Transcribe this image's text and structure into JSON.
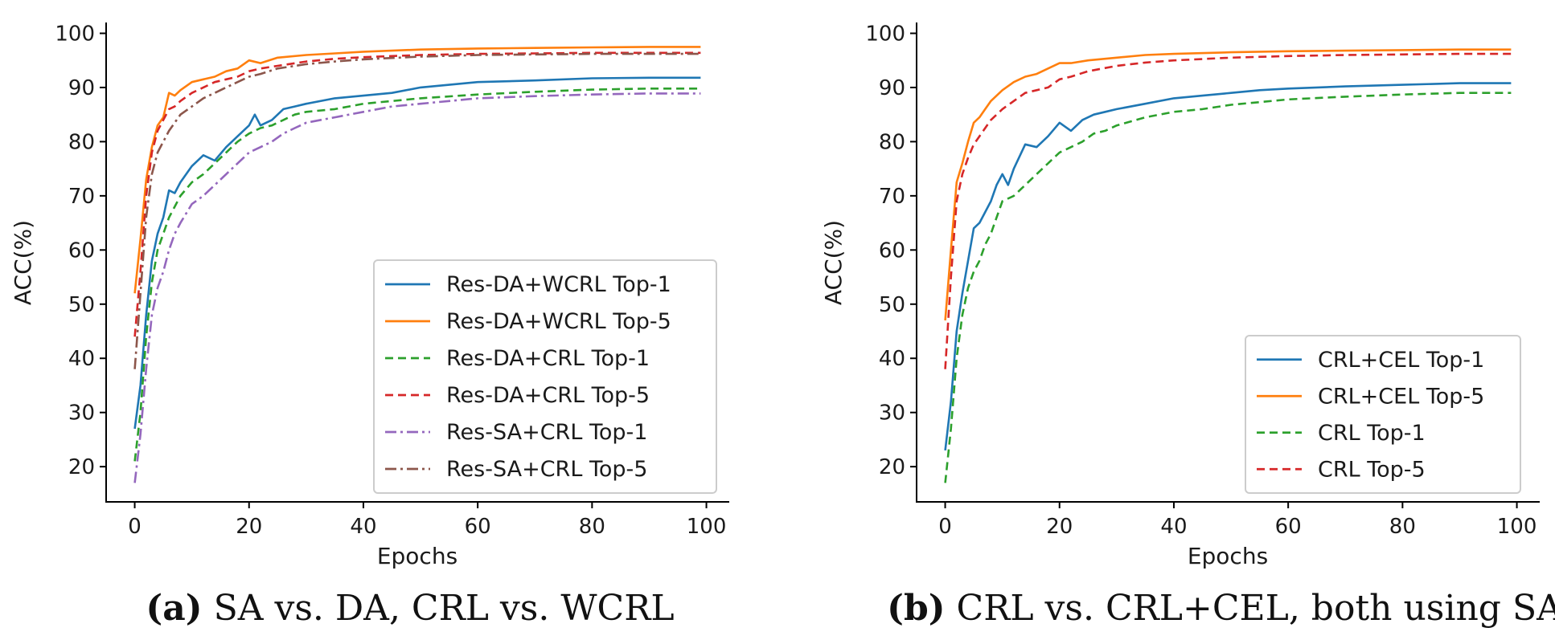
{
  "colors": {
    "blue": "#1f77b4",
    "orange": "#ff7f0e",
    "green": "#2ca02c",
    "red": "#d62728",
    "purple": "#9467bd",
    "brown": "#8c564b"
  },
  "chart_data": [
    {
      "type": "line",
      "title": "",
      "xlabel": "Epochs",
      "ylabel": "ACC(%)",
      "xlim": [
        -5,
        104
      ],
      "ylim": [
        13.5,
        102
      ],
      "xticks": [
        0,
        20,
        40,
        60,
        80,
        100
      ],
      "yticks": [
        20,
        30,
        40,
        50,
        60,
        70,
        80,
        90,
        100
      ],
      "grid": false,
      "legend_position": "lower-right",
      "caption": {
        "letter": "(a)",
        "text": "SA vs. DA, CRL vs. WCRL"
      },
      "series": [
        {
          "name": "Res-DA+WCRL Top-1",
          "color": "#1f77b4",
          "dash": "solid",
          "x": [
            0,
            1,
            2,
            3,
            4,
            5,
            6,
            7,
            8,
            10,
            12,
            14,
            16,
            18,
            20,
            21,
            22,
            24,
            26,
            28,
            30,
            35,
            40,
            45,
            50,
            55,
            60,
            70,
            80,
            90,
            99
          ],
          "y": [
            27,
            35,
            48,
            58,
            63,
            66,
            71,
            70.5,
            72.5,
            75.5,
            77.5,
            76.5,
            79,
            81,
            83,
            85,
            83,
            84,
            86,
            86.5,
            87,
            88,
            88.5,
            89,
            90,
            90.5,
            91,
            91.3,
            91.7,
            91.8,
            91.8
          ]
        },
        {
          "name": "Res-DA+WCRL Top-5",
          "color": "#ff7f0e",
          "dash": "solid",
          "x": [
            0,
            1,
            2,
            3,
            4,
            5,
            6,
            7,
            8,
            10,
            12,
            14,
            16,
            18,
            20,
            22,
            25,
            30,
            35,
            40,
            50,
            60,
            70,
            80,
            90,
            99
          ],
          "y": [
            52,
            62,
            73,
            79,
            83,
            84.5,
            89,
            88.5,
            89.5,
            91,
            91.5,
            92,
            93,
            93.5,
            95,
            94.5,
            95.5,
            96,
            96.3,
            96.6,
            97,
            97.2,
            97.3,
            97.4,
            97.5,
            97.5
          ]
        },
        {
          "name": "Res-DA+CRL Top-1",
          "color": "#2ca02c",
          "dash": "dashed",
          "x": [
            0,
            1,
            2,
            3,
            4,
            5,
            6,
            7,
            8,
            10,
            12,
            14,
            16,
            18,
            20,
            22,
            24,
            26,
            28,
            30,
            35,
            40,
            45,
            50,
            60,
            70,
            80,
            90,
            99
          ],
          "y": [
            21,
            30,
            44,
            54,
            60,
            63,
            66,
            68,
            70,
            72.5,
            74,
            76,
            78,
            80,
            81.5,
            82.5,
            83,
            84,
            85,
            85.5,
            86,
            87,
            87.5,
            88,
            88.7,
            89.2,
            89.6,
            89.8,
            89.8
          ]
        },
        {
          "name": "Res-DA+CRL Top-5",
          "color": "#d62728",
          "dash": "dashed",
          "x": [
            0,
            1,
            2,
            3,
            4,
            5,
            6,
            7,
            8,
            10,
            12,
            14,
            16,
            18,
            20,
            22,
            25,
            30,
            35,
            40,
            50,
            60,
            70,
            80,
            90,
            99
          ],
          "y": [
            44,
            56,
            70,
            78,
            82,
            84,
            86,
            86.5,
            87.5,
            89,
            90,
            91,
            91.5,
            92,
            93,
            93.5,
            94,
            94.8,
            95.3,
            95.6,
            96,
            96.2,
            96.3,
            96.4,
            96.4,
            96.4
          ]
        },
        {
          "name": "Res-SA+CRL Top-1",
          "color": "#9467bd",
          "dash": "dashdot",
          "x": [
            0,
            1,
            2,
            3,
            4,
            5,
            6,
            7,
            8,
            10,
            12,
            14,
            16,
            18,
            20,
            22,
            24,
            26,
            28,
            30,
            35,
            40,
            45,
            50,
            55,
            60,
            70,
            80,
            90,
            99
          ],
          "y": [
            17,
            26,
            38,
            48,
            53,
            56,
            60,
            63,
            65,
            68.5,
            70,
            72,
            74,
            76,
            78,
            79,
            80,
            81.5,
            82.5,
            83.5,
            84.5,
            85.5,
            86.5,
            87,
            87.5,
            88,
            88.4,
            88.7,
            88.9,
            88.9
          ]
        },
        {
          "name": "Res-SA+CRL Top-5",
          "color": "#8c564b",
          "dash": "dashdot",
          "x": [
            0,
            1,
            2,
            3,
            4,
            5,
            6,
            7,
            8,
            10,
            12,
            14,
            16,
            18,
            20,
            22,
            25,
            30,
            35,
            40,
            50,
            60,
            70,
            80,
            90,
            99
          ],
          "y": [
            38,
            52,
            66,
            74,
            78,
            80,
            82,
            83.5,
            85,
            86.5,
            88,
            89,
            90,
            91,
            92,
            92.5,
            93.5,
            94.3,
            94.8,
            95.2,
            95.7,
            96,
            96.1,
            96.2,
            96.2,
            96.2
          ]
        }
      ]
    },
    {
      "type": "line",
      "title": "",
      "xlabel": "Epochs",
      "ylabel": "ACC(%)",
      "xlim": [
        -5,
        104
      ],
      "ylim": [
        13.5,
        102
      ],
      "xticks": [
        0,
        20,
        40,
        60,
        80,
        100
      ],
      "yticks": [
        20,
        30,
        40,
        50,
        60,
        70,
        80,
        90,
        100
      ],
      "grid": false,
      "legend_position": "lower-right",
      "caption": {
        "letter": "(b)",
        "text": "CRL vs. CRL+CEL, both using SA"
      },
      "series": [
        {
          "name": "CRL+CEL Top-1",
          "color": "#1f77b4",
          "dash": "solid",
          "x": [
            0,
            1,
            2,
            3,
            4,
            5,
            6,
            7,
            8,
            9,
            10,
            11,
            12,
            14,
            16,
            18,
            20,
            22,
            24,
            26,
            28,
            30,
            35,
            40,
            45,
            50,
            55,
            60,
            70,
            80,
            90,
            99
          ],
          "y": [
            23,
            32,
            45,
            52,
            58,
            64,
            65,
            67,
            69,
            72,
            74,
            72,
            75,
            79.5,
            79,
            81,
            83.5,
            82,
            84,
            85,
            85.5,
            86,
            87,
            88,
            88.5,
            89,
            89.5,
            89.8,
            90.2,
            90.5,
            90.8,
            90.8
          ]
        },
        {
          "name": "CRL+CEL Top-5",
          "color": "#ff7f0e",
          "dash": "solid",
          "x": [
            0,
            1,
            2,
            3,
            4,
            5,
            6,
            7,
            8,
            10,
            12,
            14,
            16,
            18,
            20,
            22,
            25,
            30,
            35,
            40,
            50,
            60,
            70,
            80,
            90,
            99
          ],
          "y": [
            47,
            60,
            72.5,
            76,
            80,
            83.5,
            84.5,
            86,
            87.5,
            89.5,
            91,
            92,
            92.5,
            93.5,
            94.5,
            94.5,
            95,
            95.5,
            96,
            96.2,
            96.5,
            96.7,
            96.8,
            96.9,
            97,
            97
          ]
        },
        {
          "name": "CRL Top-1",
          "color": "#2ca02c",
          "dash": "dashed",
          "x": [
            0,
            1,
            2,
            3,
            4,
            5,
            6,
            7,
            8,
            9,
            10,
            12,
            14,
            16,
            18,
            20,
            22,
            24,
            26,
            28,
            30,
            35,
            40,
            45,
            50,
            55,
            60,
            70,
            80,
            90,
            99
          ],
          "y": [
            17,
            27,
            40,
            48,
            53,
            56,
            58,
            61,
            63,
            66,
            69,
            70,
            72,
            74,
            76,
            78,
            79,
            80,
            81.5,
            82,
            83,
            84.5,
            85.5,
            86,
            86.8,
            87.3,
            87.8,
            88.3,
            88.7,
            89,
            89
          ]
        },
        {
          "name": "CRL Top-5",
          "color": "#d62728",
          "dash": "dashed",
          "x": [
            0,
            1,
            2,
            3,
            4,
            5,
            6,
            7,
            8,
            10,
            12,
            14,
            16,
            18,
            20,
            22,
            25,
            30,
            35,
            40,
            50,
            60,
            70,
            80,
            90,
            99
          ],
          "y": [
            38,
            55,
            69,
            74,
            77,
            79.5,
            81,
            82.5,
            84,
            86,
            87.5,
            89,
            89.5,
            90,
            91.5,
            92,
            93,
            94,
            94.6,
            95,
            95.5,
            95.8,
            96,
            96.1,
            96.2,
            96.2
          ]
        }
      ]
    }
  ]
}
